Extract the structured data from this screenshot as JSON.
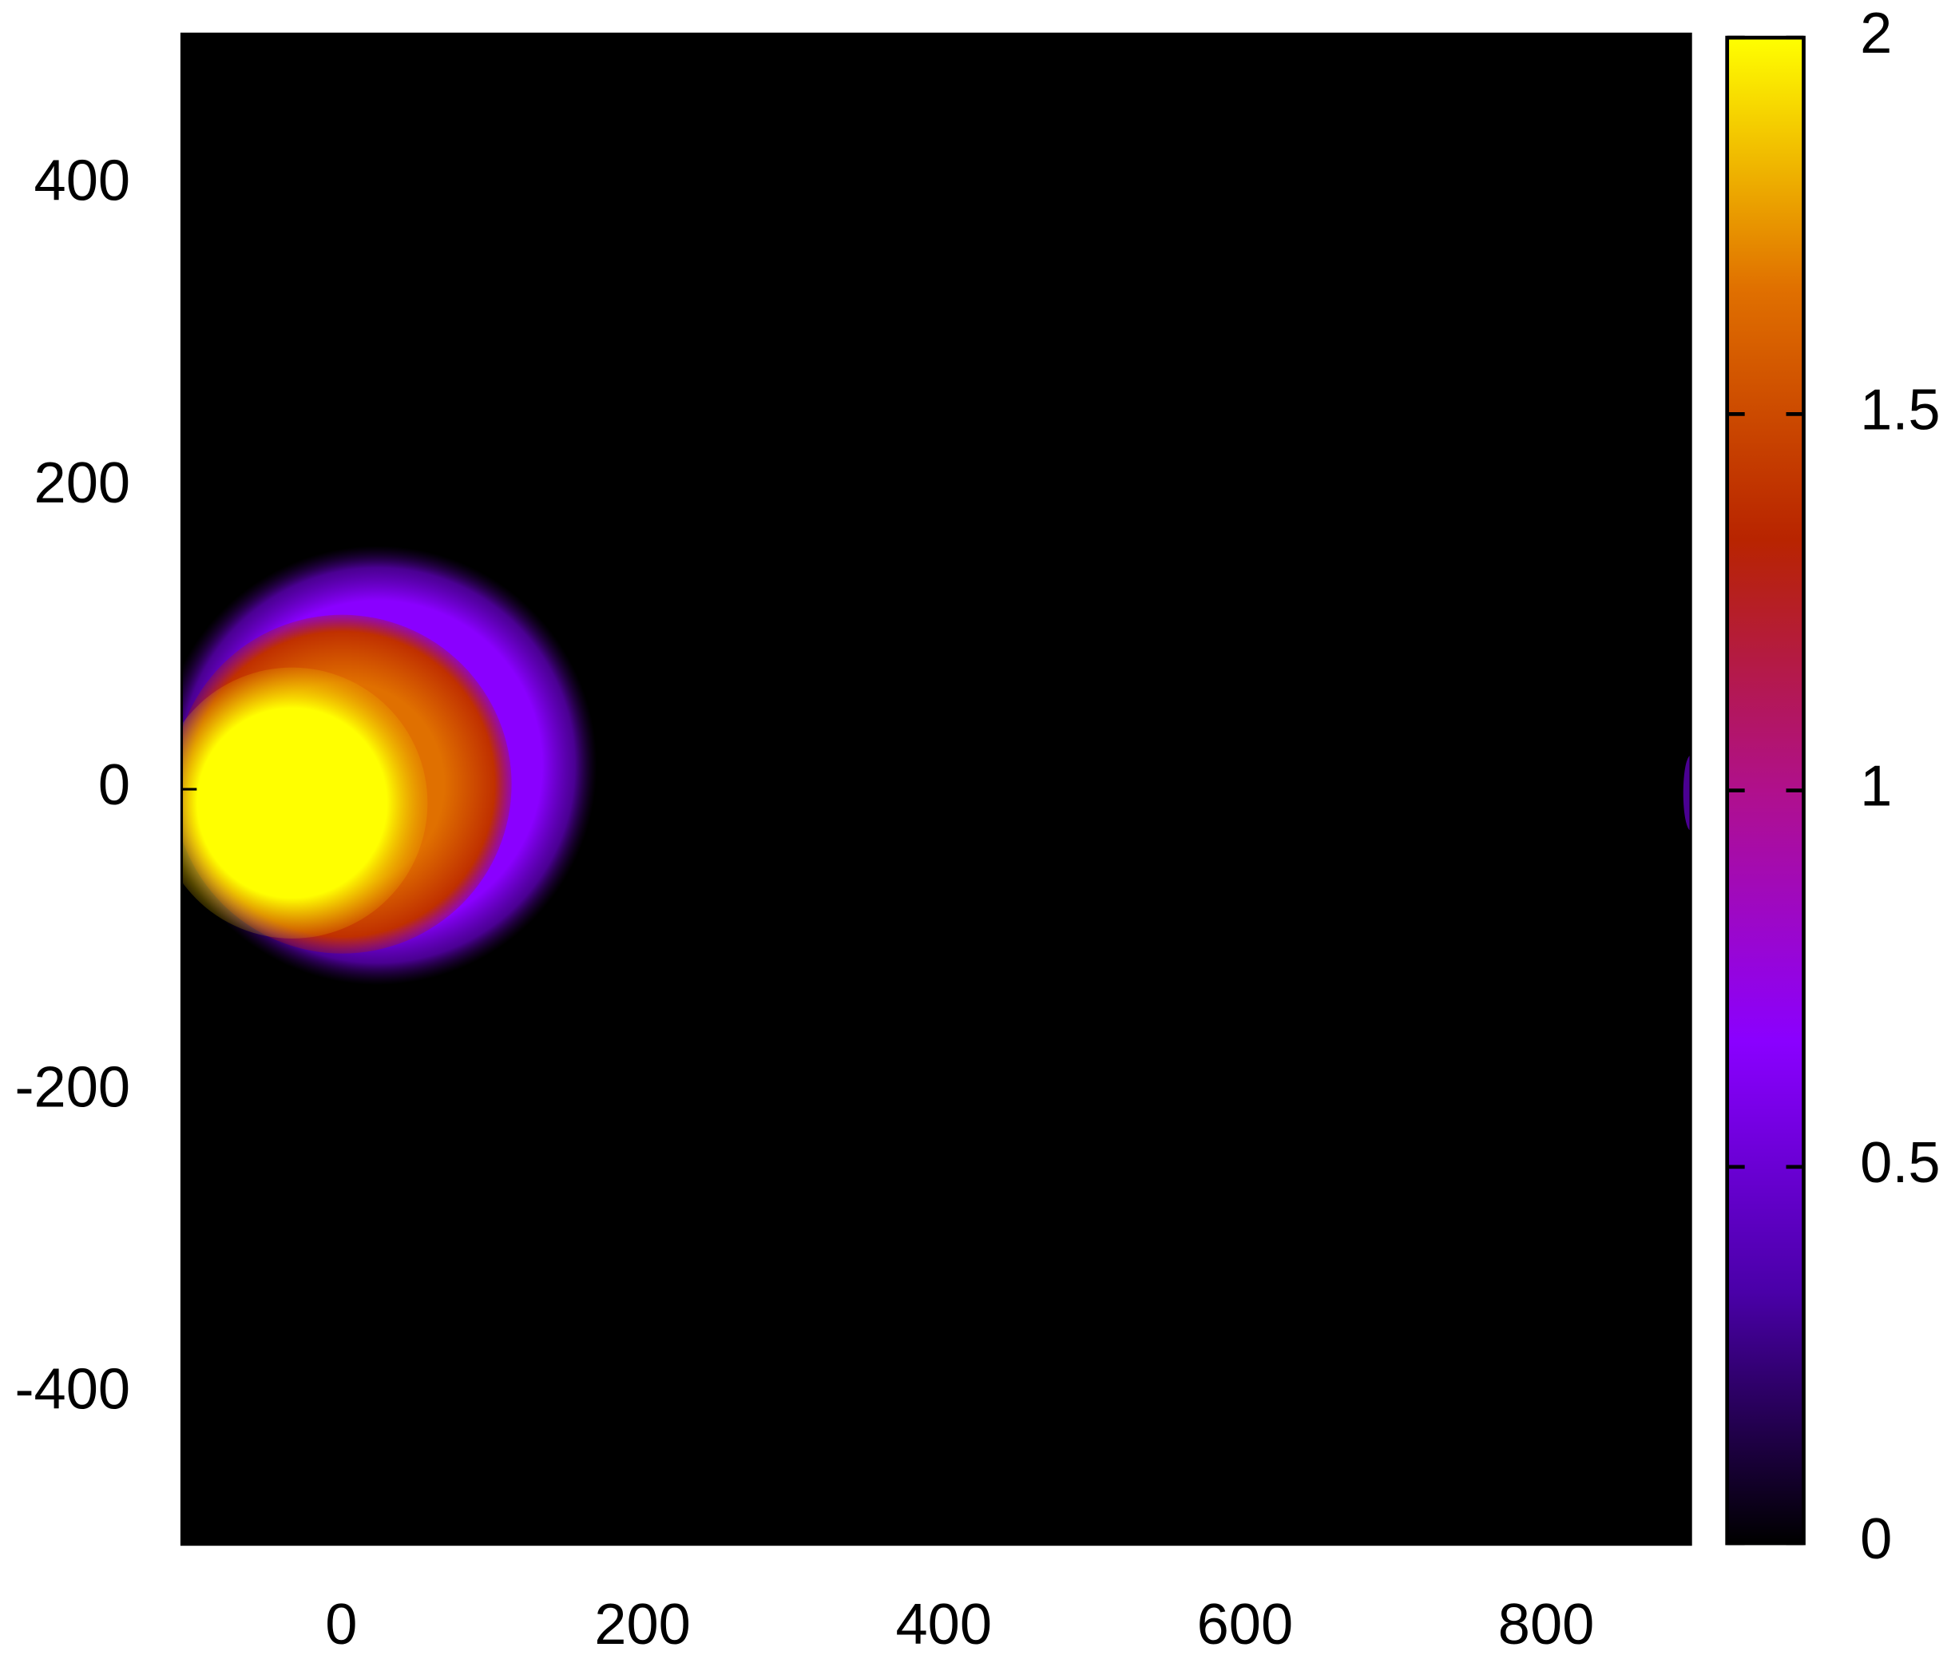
{
  "chart_data": {
    "type": "heatmap",
    "xlim": [
      -106,
      896
    ],
    "xticks": [
      0,
      200,
      400,
      600,
      800
    ],
    "ylim": [
      -500,
      500
    ],
    "yticks": [
      -400,
      -200,
      0,
      200,
      400
    ],
    "colorbar": {
      "lim": [
        0,
        2
      ],
      "ticks": [
        0,
        0.5,
        1,
        1.5,
        2
      ]
    },
    "palette": [
      "#000000",
      "#4a00a8",
      "#8a00ff",
      "#b0108c",
      "#b82400",
      "#e07000",
      "#ffff00"
    ],
    "grid": false
  }
}
